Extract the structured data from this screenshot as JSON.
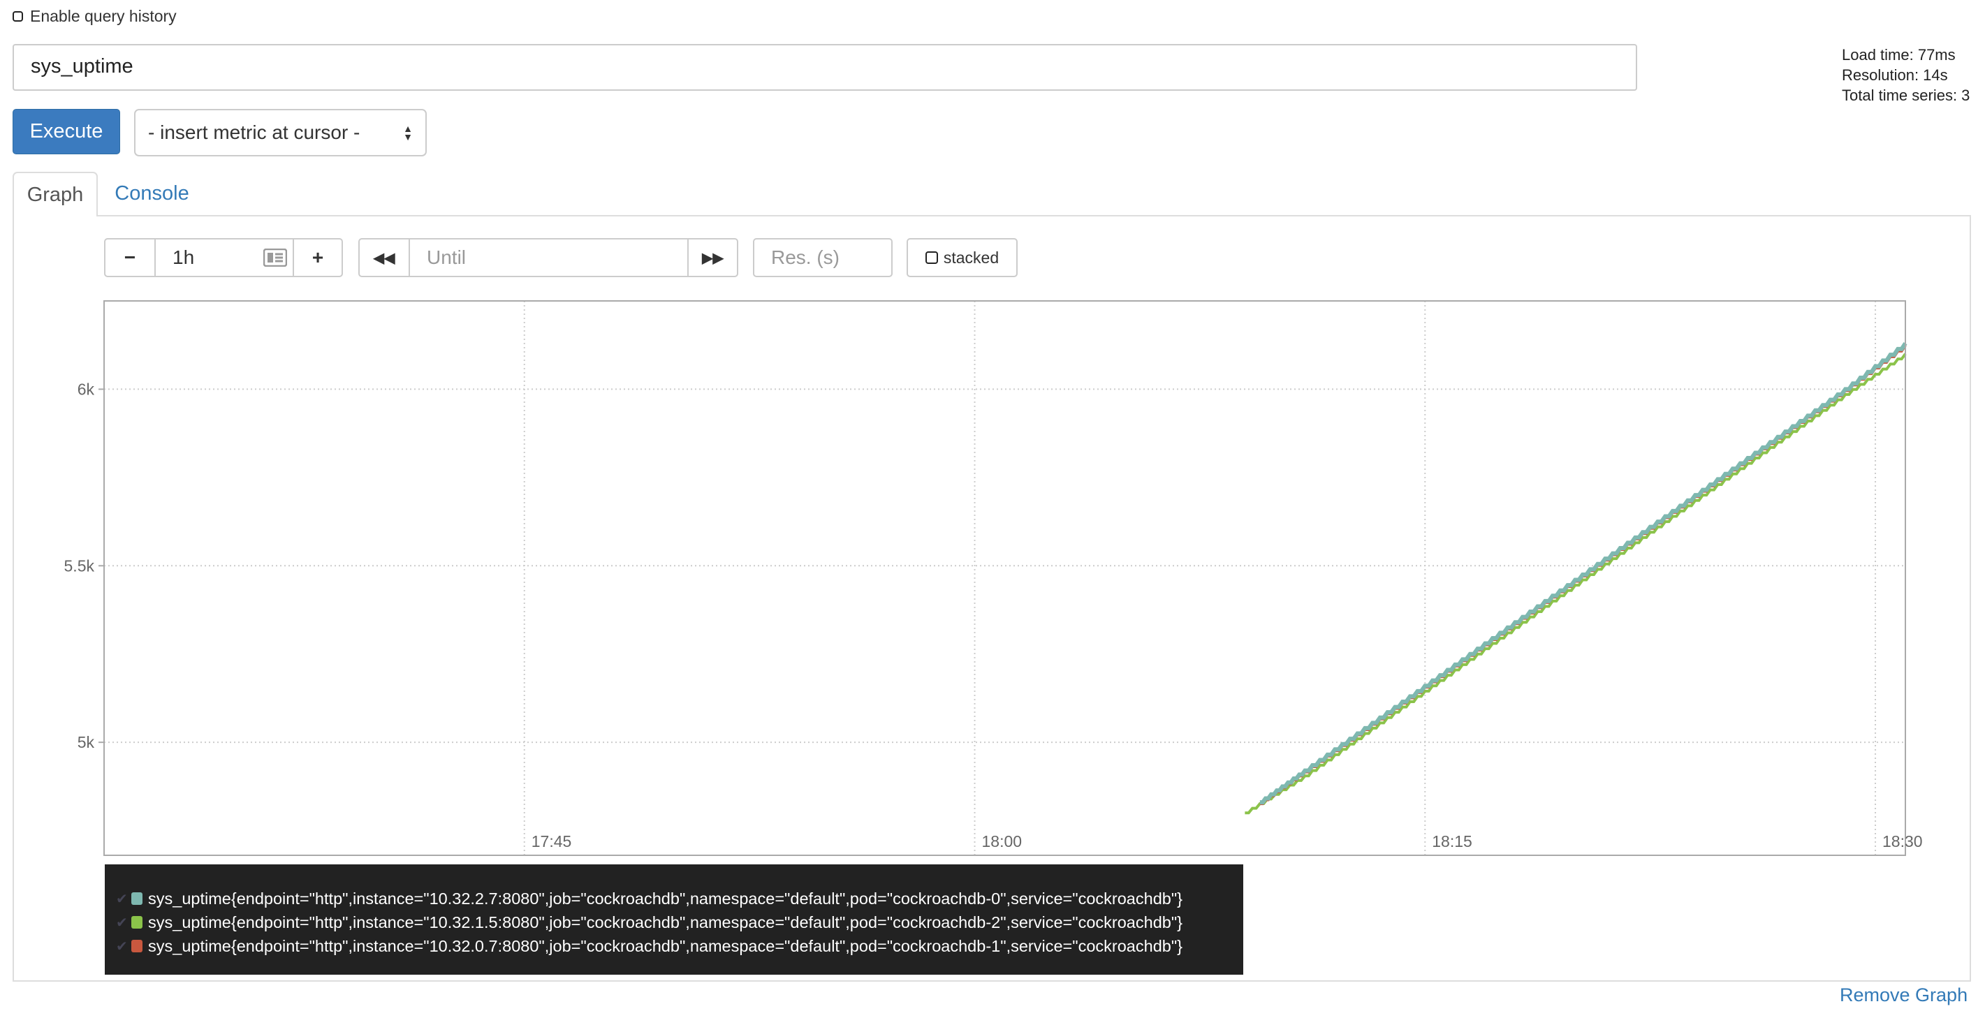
{
  "query_history": {
    "label": "Enable query history",
    "checked": false
  },
  "expression": {
    "value": "sys_uptime"
  },
  "stats": {
    "load_time": "Load time: 77ms",
    "resolution": "Resolution: 14s",
    "total_series": "Total time series: 3"
  },
  "execute_label": "Execute",
  "metric_select": {
    "selected": "- insert metric at cursor -"
  },
  "tabs": [
    {
      "label": "Graph",
      "active": true
    },
    {
      "label": "Console",
      "active": false
    }
  ],
  "controls": {
    "range_minus": "−",
    "range_value": "1h",
    "range_plus": "+",
    "until_placeholder": "Until",
    "back_icon": "double-chevron-left",
    "forward_icon": "double-chevron-right",
    "res_placeholder": "Res. (s)",
    "stacked_label": "stacked"
  },
  "chart_data": {
    "type": "line",
    "x_ticks": [
      "17:45",
      "18:00",
      "18:15",
      "18:30"
    ],
    "y_ticks": [
      "5k",
      "5.5k",
      "6k"
    ],
    "xlim": [
      "17:31",
      "18:31"
    ],
    "ylim": [
      4680,
      6250
    ],
    "grid": true,
    "legend_placement": "bottom",
    "series": [
      {
        "name": "sys_uptime{endpoint=\"http\",instance=\"10.32.2.7:8080\",job=\"cockroachdb\",namespace=\"default\",pod=\"cockroachdb-0\",service=\"cockroachdb\"}",
        "color": "#7eb8b0",
        "points": [
          [
            "18:09:30",
            4830
          ],
          [
            "18:11",
            4920
          ],
          [
            "18:13",
            5040
          ],
          [
            "18:15",
            5160
          ],
          [
            "18:17",
            5280
          ],
          [
            "18:19",
            5400
          ],
          [
            "18:21",
            5520
          ],
          [
            "18:23",
            5640
          ],
          [
            "18:25",
            5760
          ],
          [
            "18:27",
            5880
          ],
          [
            "18:29",
            6000
          ],
          [
            "18:31",
            6130
          ]
        ]
      },
      {
        "name": "sys_uptime{endpoint=\"http\",instance=\"10.32.1.5:8080\",job=\"cockroachdb\",namespace=\"default\",pod=\"cockroachdb-2\",service=\"cockroachdb\"}",
        "color": "#8bc34a",
        "points": [
          [
            "18:09",
            4800
          ],
          [
            "18:11",
            4905
          ],
          [
            "18:13",
            5025
          ],
          [
            "18:15",
            5145
          ],
          [
            "18:17",
            5265
          ],
          [
            "18:19",
            5385
          ],
          [
            "18:21",
            5505
          ],
          [
            "18:23",
            5625
          ],
          [
            "18:25",
            5745
          ],
          [
            "18:27",
            5865
          ],
          [
            "18:29",
            5985
          ],
          [
            "18:31",
            6100
          ]
        ]
      },
      {
        "name": "sys_uptime{endpoint=\"http\",instance=\"10.32.0.7:8080\",job=\"cockroachdb\",namespace=\"default\",pod=\"cockroachdb-1\",service=\"cockroachdb\"}",
        "color": "#c8583f",
        "points": [
          [
            "18:09:30",
            4826
          ],
          [
            "18:11",
            4916
          ],
          [
            "18:13",
            5036
          ],
          [
            "18:15",
            5156
          ],
          [
            "18:17",
            5276
          ],
          [
            "18:19",
            5396
          ],
          [
            "18:21",
            5516
          ],
          [
            "18:23",
            5636
          ],
          [
            "18:25",
            5756
          ],
          [
            "18:27",
            5876
          ],
          [
            "18:29",
            5996
          ],
          [
            "18:31",
            6124
          ]
        ]
      }
    ]
  },
  "remove_graph_label": "Remove Graph"
}
